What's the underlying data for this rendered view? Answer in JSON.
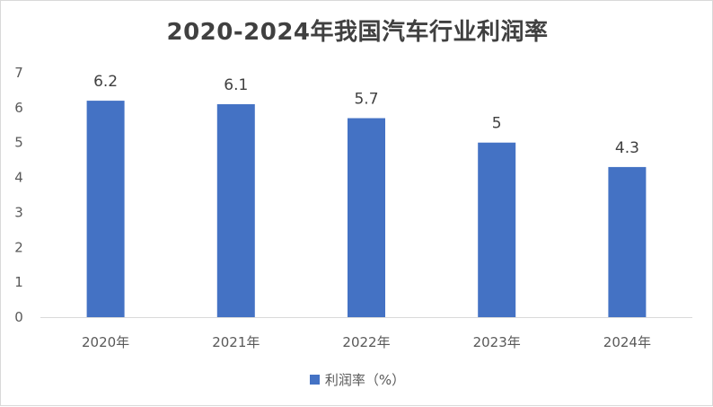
{
  "chart_data": {
    "type": "bar",
    "title": "2020-2024年我国汽车行业利润率",
    "categories": [
      "2020年",
      "2021年",
      "2022年",
      "2023年",
      "2024年"
    ],
    "series": [
      {
        "name": "利润率（%）",
        "values": [
          6.2,
          6.1,
          5.7,
          5,
          4.3
        ]
      }
    ],
    "data_labels": [
      "6.2",
      "6.1",
      "5.7",
      "5",
      "4.3"
    ],
    "y_ticks": [
      "0",
      "1",
      "2",
      "3",
      "4",
      "5",
      "6",
      "7"
    ],
    "ylim": [
      0,
      7
    ],
    "xlabel": "",
    "ylabel": "",
    "grid": false,
    "legend_position": "bottom",
    "bar_color": "#4472c4",
    "axis_color": "#d9d9d9",
    "text_color": "#595959"
  }
}
